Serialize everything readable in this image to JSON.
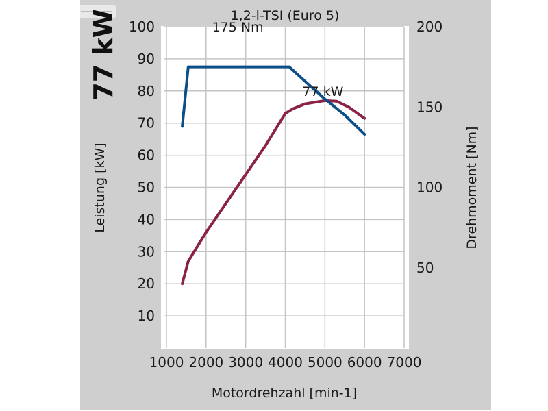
{
  "chart_data": {
    "type": "line",
    "title": "1,2-l-TSI (Euro 5)",
    "headline": "77 kW",
    "xlabel": "Motordrehzahl [min-1]",
    "ylabel": "Leistung [kW]",
    "y2label": "Drehmoment [Nm]",
    "xlim": [
      1000,
      7000
    ],
    "ylim": [
      0,
      100
    ],
    "y2lim": [
      0,
      200
    ],
    "x_ticks": [
      "1000",
      "2000",
      "3000",
      "4000",
      "5000",
      "6000",
      "7000"
    ],
    "y_ticks": [
      "10",
      "20",
      "30",
      "40",
      "50",
      "60",
      "70",
      "80",
      "90",
      "100"
    ],
    "y2_ticks": [
      "50",
      "100",
      "150",
      "200"
    ],
    "y2_tick_values": [
      50,
      100,
      150,
      200
    ],
    "grid": true,
    "series": [
      {
        "axis": "left",
        "color": "#8b2347",
        "x": [
          1400,
          1550,
          2000,
          2500,
          3000,
          3500,
          4000,
          4200,
          4500,
          5000,
          5300,
          5600,
          6000
        ],
        "y": [
          20,
          27,
          36,
          45,
          54,
          63,
          73,
          74.5,
          76,
          77,
          76.8,
          75,
          71.5
        ]
      },
      {
        "axis": "right",
        "color": "#0c4f88",
        "x": [
          1400,
          1550,
          2000,
          3000,
          4000,
          4100,
          4500,
          5000,
          5500,
          6000
        ],
        "y": [
          138,
          175,
          175,
          175,
          175,
          175,
          166,
          155,
          145,
          133
        ]
      }
    ],
    "annotations": [
      {
        "text": "77 kW",
        "x": 4950,
        "y": 80,
        "axis": "left"
      },
      {
        "text": "175 Nm",
        "x": 2800,
        "y": 200,
        "axis": "right"
      }
    ]
  },
  "colors": {
    "panel_background": "#cfcfcf",
    "plot_background": "#ffffff",
    "grid": "#c4c4c4"
  },
  "icons": [
    "logo-watermark"
  ]
}
